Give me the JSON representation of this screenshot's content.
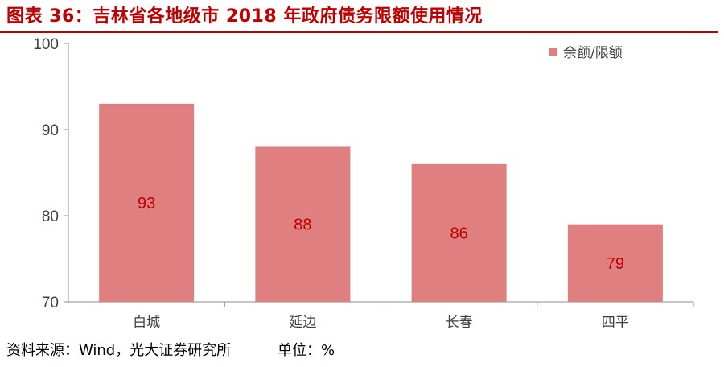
{
  "title": "图表 36：吉林省各地级市 2018 年政府债务限额使用情况",
  "footer": {
    "source": "资料来源：Wind，光大证券研究所",
    "unit": "单位：%"
  },
  "colors": {
    "bar": "#e07f7f",
    "title": "#c00000",
    "data_label": "#c00000"
  },
  "chart_data": {
    "type": "bar",
    "categories": [
      "白城",
      "延边",
      "长春",
      "四平"
    ],
    "series": [
      {
        "name": "余额/限额",
        "values": [
          93,
          88,
          86,
          79
        ]
      }
    ],
    "data_labels": [
      "93",
      "88",
      "86",
      "79"
    ],
    "ylim": [
      70,
      100
    ],
    "yticks": [
      "70",
      "80",
      "90",
      "100"
    ],
    "legend_position": "top-right",
    "grid": false
  }
}
